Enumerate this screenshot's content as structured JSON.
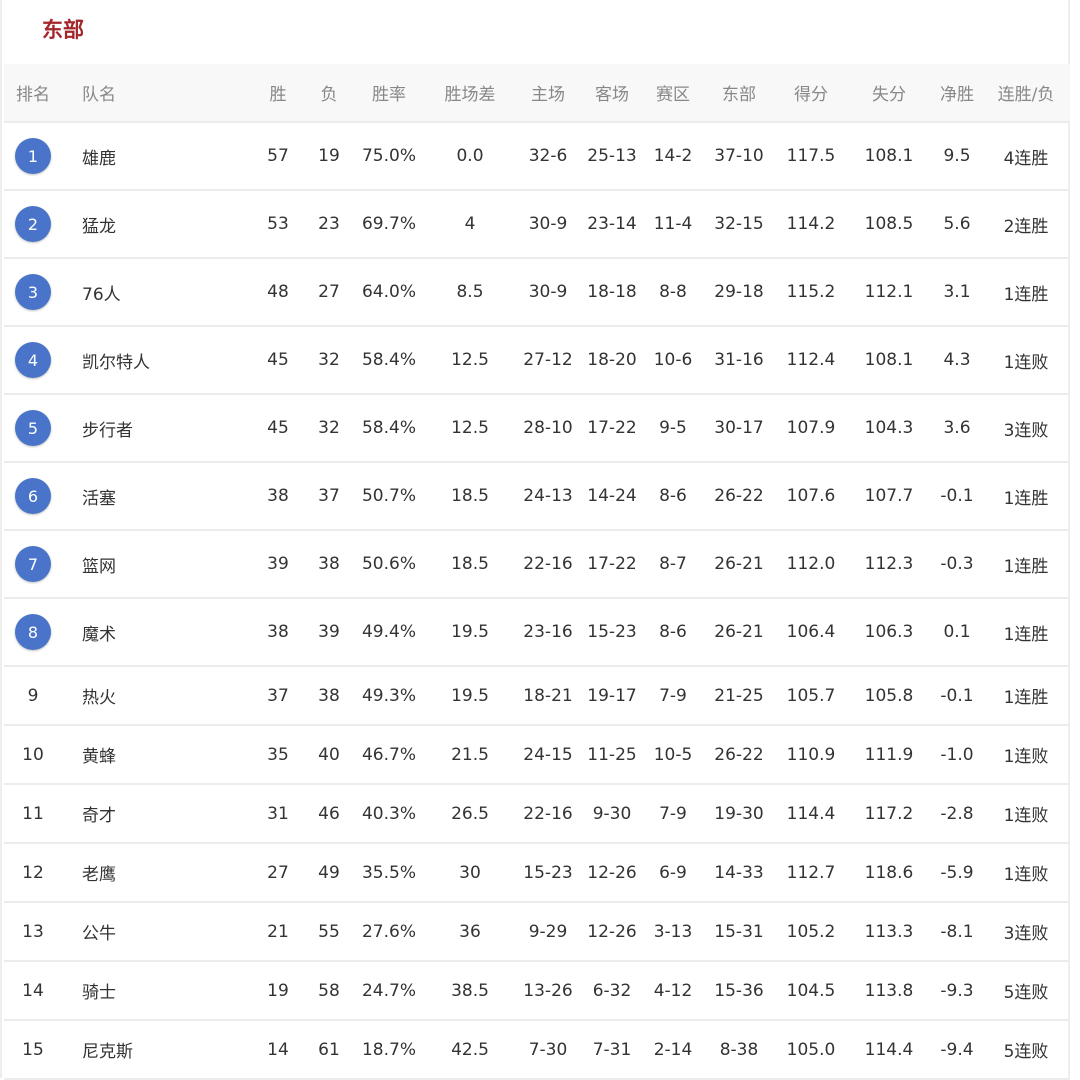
{
  "title": "东部",
  "colors": {
    "title": "#a3262b",
    "rank_badge": "#4a74c9"
  },
  "headers": [
    "排名",
    "队名",
    "胜",
    "负",
    "胜率",
    "胜场差",
    "主场",
    "客场",
    "赛区",
    "东部",
    "得分",
    "失分",
    "净胜",
    "连胜/负"
  ],
  "rows": [
    [
      "1",
      "雄鹿",
      "57",
      "19",
      "75.0%",
      "0.0",
      "32-6",
      "25-13",
      "14-2",
      "37-10",
      "117.5",
      "108.1",
      "9.5",
      "4连胜"
    ],
    [
      "2",
      "猛龙",
      "53",
      "23",
      "69.7%",
      "4",
      "30-9",
      "23-14",
      "11-4",
      "32-15",
      "114.2",
      "108.5",
      "5.6",
      "2连胜"
    ],
    [
      "3",
      "76人",
      "48",
      "27",
      "64.0%",
      "8.5",
      "30-9",
      "18-18",
      "8-8",
      "29-18",
      "115.2",
      "112.1",
      "3.1",
      "1连胜"
    ],
    [
      "4",
      "凯尔特人",
      "45",
      "32",
      "58.4%",
      "12.5",
      "27-12",
      "18-20",
      "10-6",
      "31-16",
      "112.4",
      "108.1",
      "4.3",
      "1连败"
    ],
    [
      "5",
      "步行者",
      "45",
      "32",
      "58.4%",
      "12.5",
      "28-10",
      "17-22",
      "9-5",
      "30-17",
      "107.9",
      "104.3",
      "3.6",
      "3连败"
    ],
    [
      "6",
      "活塞",
      "38",
      "37",
      "50.7%",
      "18.5",
      "24-13",
      "14-24",
      "8-6",
      "26-22",
      "107.6",
      "107.7",
      "-0.1",
      "1连胜"
    ],
    [
      "7",
      "篮网",
      "39",
      "38",
      "50.6%",
      "18.5",
      "22-16",
      "17-22",
      "8-7",
      "26-21",
      "112.0",
      "112.3",
      "-0.3",
      "1连胜"
    ],
    [
      "8",
      "魔术",
      "38",
      "39",
      "49.4%",
      "19.5",
      "23-16",
      "15-23",
      "8-6",
      "26-21",
      "106.4",
      "106.3",
      "0.1",
      "1连胜"
    ],
    [
      "9",
      "热火",
      "37",
      "38",
      "49.3%",
      "19.5",
      "18-21",
      "19-17",
      "7-9",
      "21-25",
      "105.7",
      "105.8",
      "-0.1",
      "1连胜"
    ],
    [
      "10",
      "黄蜂",
      "35",
      "40",
      "46.7%",
      "21.5",
      "24-15",
      "11-25",
      "10-5",
      "26-22",
      "110.9",
      "111.9",
      "-1.0",
      "1连败"
    ],
    [
      "11",
      "奇才",
      "31",
      "46",
      "40.3%",
      "26.5",
      "22-16",
      "9-30",
      "7-9",
      "19-30",
      "114.4",
      "117.2",
      "-2.8",
      "1连败"
    ],
    [
      "12",
      "老鹰",
      "27",
      "49",
      "35.5%",
      "30",
      "15-23",
      "12-26",
      "6-9",
      "14-33",
      "112.7",
      "118.6",
      "-5.9",
      "1连败"
    ],
    [
      "13",
      "公牛",
      "21",
      "55",
      "27.6%",
      "36",
      "9-29",
      "12-26",
      "3-13",
      "15-31",
      "105.2",
      "113.3",
      "-8.1",
      "3连败"
    ],
    [
      "14",
      "骑士",
      "19",
      "58",
      "24.7%",
      "38.5",
      "13-26",
      "6-32",
      "4-12",
      "15-36",
      "104.5",
      "113.8",
      "-9.3",
      "5连败"
    ],
    [
      "15",
      "尼克斯",
      "14",
      "61",
      "18.7%",
      "42.5",
      "7-30",
      "7-31",
      "2-14",
      "8-38",
      "105.0",
      "114.4",
      "-9.4",
      "5连败"
    ]
  ]
}
